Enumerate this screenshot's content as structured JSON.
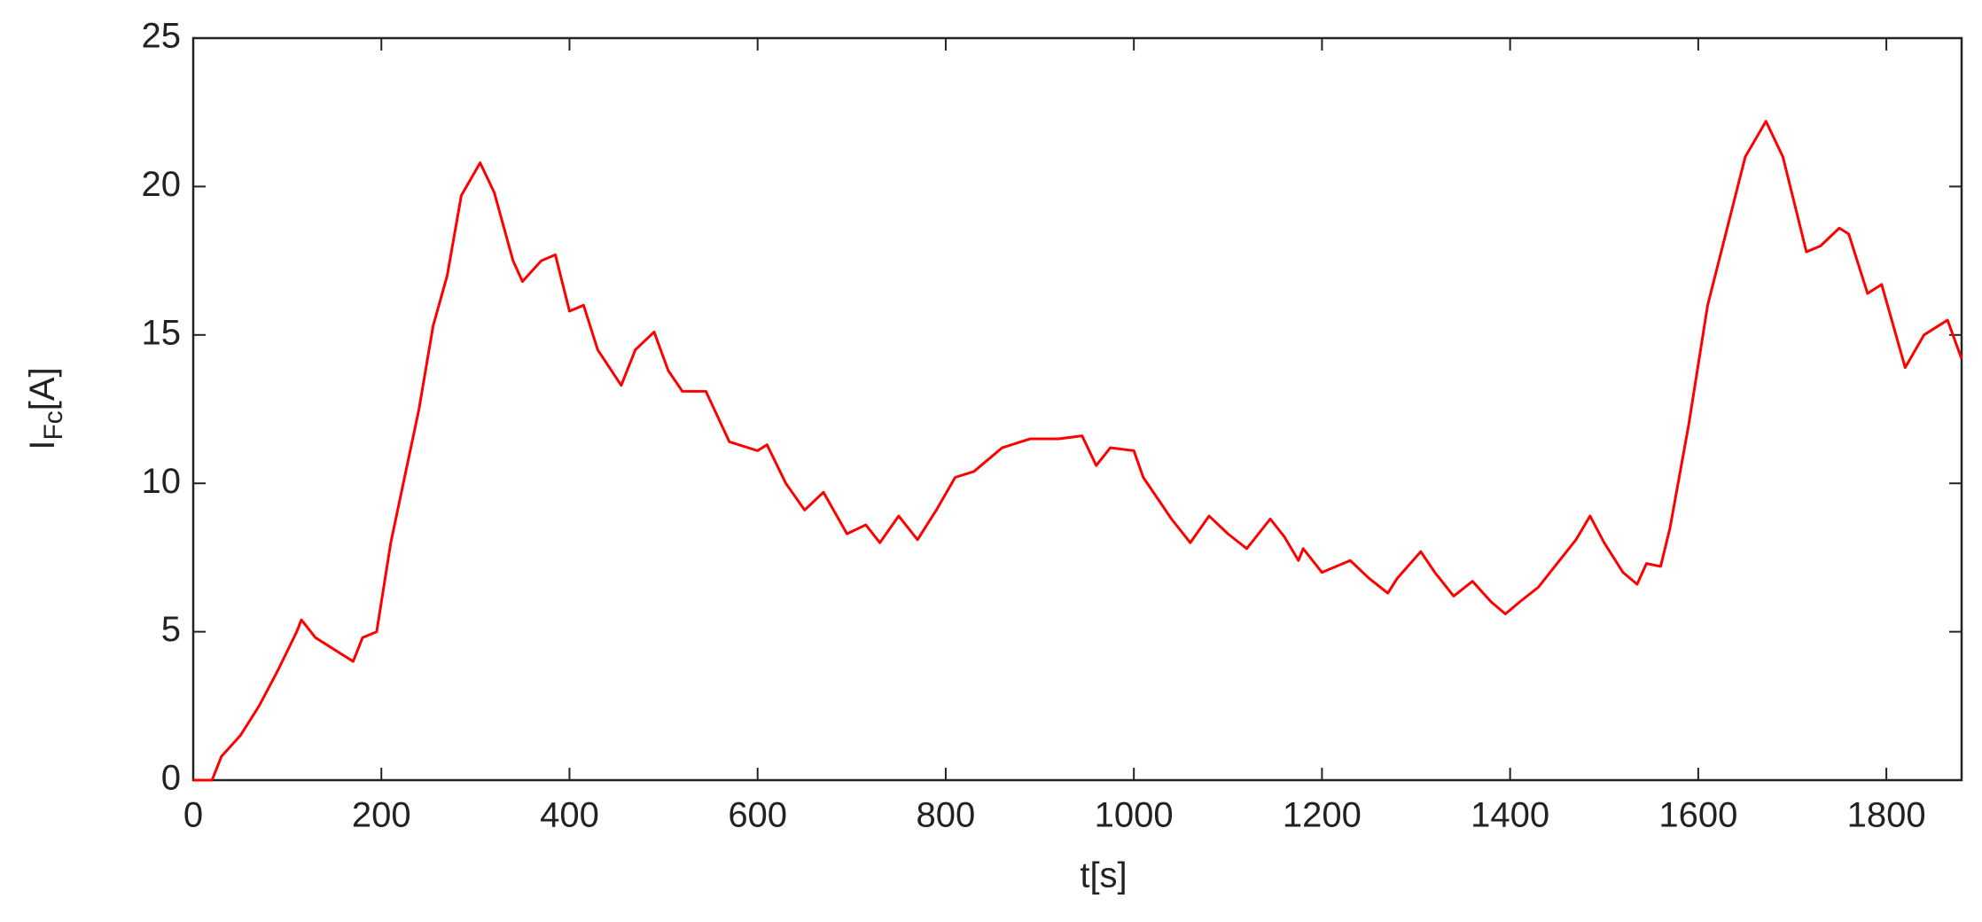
{
  "chart_data": {
    "type": "line",
    "xlabel": "t[s]",
    "ylabel": [
      "I",
      "Fc",
      "[A]"
    ],
    "xlim": [
      0,
      1880
    ],
    "ylim": [
      0,
      25
    ],
    "xticks": [
      0,
      200,
      400,
      600,
      800,
      1000,
      1200,
      1400,
      1600,
      1800
    ],
    "yticks": [
      0,
      5,
      10,
      15,
      20,
      25
    ],
    "grid": false,
    "x": [
      0,
      20,
      30,
      50,
      70,
      90,
      110,
      115,
      130,
      150,
      170,
      180,
      195,
      200,
      210,
      220,
      240,
      255,
      270,
      285,
      305,
      320,
      340,
      350,
      370,
      385,
      400,
      415,
      430,
      455,
      470,
      490,
      505,
      520,
      545,
      570,
      600,
      610,
      630,
      650,
      670,
      695,
      715,
      730,
      750,
      770,
      790,
      810,
      830,
      860,
      890,
      920,
      945,
      960,
      975,
      1000,
      1010,
      1040,
      1060,
      1080,
      1100,
      1120,
      1145,
      1160,
      1175,
      1180,
      1200,
      1230,
      1250,
      1270,
      1280,
      1305,
      1320,
      1340,
      1360,
      1380,
      1395,
      1410,
      1430,
      1450,
      1470,
      1485,
      1500,
      1520,
      1535,
      1545,
      1560,
      1570,
      1590,
      1610,
      1630,
      1650,
      1672,
      1690,
      1715,
      1730,
      1750,
      1760,
      1780,
      1795,
      1820,
      1840,
      1865,
      1880
    ],
    "series": [
      {
        "color": "#ff0000",
        "values": [
          0,
          0,
          0.8,
          1.5,
          2.5,
          3.7,
          5.0,
          5.4,
          4.8,
          4.4,
          4.0,
          4.8,
          5.0,
          6,
          8,
          9.5,
          12.5,
          15.3,
          17,
          19.7,
          20.8,
          19.8,
          17.5,
          16.8,
          17.5,
          17.7,
          15.8,
          16,
          14.5,
          13.3,
          14.5,
          15.1,
          13.8,
          13.1,
          13.1,
          11.4,
          11.1,
          11.3,
          10,
          9.1,
          9.7,
          8.3,
          8.6,
          8.0,
          8.9,
          8.1,
          9.1,
          10.2,
          10.4,
          11.2,
          11.5,
          11.5,
          11.6,
          10.6,
          11.2,
          11.1,
          10.2,
          8.8,
          8.0,
          8.9,
          8.3,
          7.8,
          8.8,
          8.2,
          7.4,
          7.8,
          7.0,
          7.4,
          6.8,
          6.3,
          6.8,
          7.7,
          7.0,
          6.2,
          6.7,
          6.0,
          5.6,
          6.0,
          6.5,
          7.3,
          8.1,
          8.9,
          8.0,
          7.0,
          6.6,
          7.3,
          7.2,
          8.5,
          12,
          16,
          18.5,
          21,
          22.2,
          21,
          17.8,
          18.0,
          18.6,
          18.4,
          16.4,
          16.7,
          13.9,
          15,
          15.5,
          14.2
        ]
      }
    ]
  }
}
